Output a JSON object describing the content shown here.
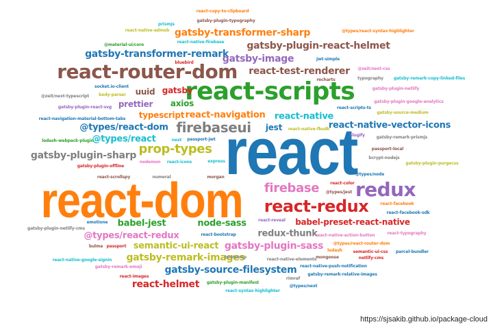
{
  "credit": "https://sjsakib.github.io/package-cloud",
  "palette": {
    "blue": "#1f77b4",
    "orange": "#ff7f0e",
    "green": "#2ca02c",
    "red": "#d62728",
    "purple": "#9467bd",
    "brown": "#8c564b",
    "pink": "#e377c2",
    "gray": "#7f7f7f",
    "olive": "#bcbd22",
    "cyan": "#17becf"
  },
  "words": [
    {
      "text": "react",
      "weight": 100,
      "color": "blue"
    },
    {
      "text": "react-dom",
      "weight": 88,
      "color": "orange"
    },
    {
      "text": "react-scripts",
      "weight": 40,
      "color": "green"
    },
    {
      "text": "react-router-dom",
      "weight": 32,
      "color": "brown"
    },
    {
      "text": "redux",
      "weight": 28,
      "color": "purple"
    },
    {
      "text": "react-redux",
      "weight": 26,
      "color": "red"
    },
    {
      "text": "firebaseui",
      "weight": 22,
      "color": "gray"
    },
    {
      "text": "firebase",
      "weight": 20,
      "color": "pink"
    },
    {
      "text": "prop-types",
      "weight": 19,
      "color": "olive"
    },
    {
      "text": "react-native-vector-icons",
      "weight": 15,
      "color": "blue"
    },
    {
      "text": "gatsby-plugin-react-helmet",
      "weight": 15,
      "color": "brown"
    },
    {
      "text": "gatsby-transformer-sharp",
      "weight": 15,
      "color": "orange"
    },
    {
      "text": "gatsby-transformer-remark",
      "weight": 14,
      "color": "blue"
    },
    {
      "text": "gatsby-image",
      "weight": 14,
      "color": "purple"
    },
    {
      "text": "react-test-renderer",
      "weight": 14,
      "color": "brown"
    },
    {
      "text": "gatsby-plugin-sharp",
      "weight": 14,
      "color": "gray"
    },
    {
      "text": "gatsby-source-filesystem",
      "weight": 14,
      "color": "blue"
    },
    {
      "text": "gatsby-remark-images",
      "weight": 14,
      "color": "olive"
    },
    {
      "text": "gatsby-plugin-sass",
      "weight": 14,
      "color": "pink"
    },
    {
      "text": "react-helmet",
      "weight": 14,
      "color": "red"
    },
    {
      "text": "babel-preset-react-native",
      "weight": 13,
      "color": "red"
    },
    {
      "text": "react-native",
      "weight": 13,
      "color": "cyan"
    },
    {
      "text": "react-navigation",
      "weight": 13,
      "color": "orange"
    },
    {
      "text": "@types/react-dom",
      "weight": 13,
      "color": "blue"
    },
    {
      "text": "@types/react",
      "weight": 13,
      "color": "cyan"
    },
    {
      "text": "@types/react-redux",
      "weight": 13,
      "color": "pink"
    },
    {
      "text": "babel-jest",
      "weight": 13,
      "color": "green"
    },
    {
      "text": "node-sass",
      "weight": 13,
      "color": "green"
    },
    {
      "text": "redux-thunk",
      "weight": 13,
      "color": "gray"
    },
    {
      "text": "semantic-ui-react",
      "weight": 13,
      "color": "olive"
    },
    {
      "text": "typescript",
      "weight": 12,
      "color": "orange"
    },
    {
      "text": "prettier",
      "weight": 12,
      "color": "purple"
    },
    {
      "text": "axios",
      "weight": 12,
      "color": "green"
    },
    {
      "text": "gatsby",
      "weight": 12,
      "color": "red"
    },
    {
      "text": "uuid",
      "weight": 12,
      "color": "brown"
    },
    {
      "text": "jest",
      "weight": 12,
      "color": "blue"
    },
    {
      "text": "react-copy-to-clipboard",
      "weight": 3,
      "color": "orange"
    },
    {
      "text": "prismjs",
      "weight": 3,
      "color": "cyan"
    },
    {
      "text": "gatsby-plugin-typography",
      "weight": 3,
      "color": "brown"
    },
    {
      "text": "react-native-admob",
      "weight": 3,
      "color": "olive"
    },
    {
      "text": "@types/react-syntax-highlighter",
      "weight": 3,
      "color": "orange"
    },
    {
      "text": "@material-ui/core",
      "weight": 3,
      "color": "green"
    },
    {
      "text": "react-native-firebase",
      "weight": 3,
      "color": "cyan"
    },
    {
      "text": "bluebird",
      "weight": 3,
      "color": "red"
    },
    {
      "text": "jwt-simple",
      "weight": 3,
      "color": "blue"
    },
    {
      "text": "@zeit/next-css",
      "weight": 3,
      "color": "pink"
    },
    {
      "text": "socket.io-client",
      "weight": 3,
      "color": "blue"
    },
    {
      "text": "body-parser",
      "weight": 3,
      "color": "olive"
    },
    {
      "text": "recharts",
      "weight": 3,
      "color": "brown"
    },
    {
      "text": "typography",
      "weight": 3,
      "color": "gray"
    },
    {
      "text": "gatsby-remark-copy-linked-files",
      "weight": 3,
      "color": "cyan"
    },
    {
      "text": "gatsby-plugin-netlify",
      "weight": 3,
      "color": "pink"
    },
    {
      "text": "@zeit/next-typescript",
      "weight": 3,
      "color": "gray"
    },
    {
      "text": "gatsby-plugin-react-svg",
      "weight": 3,
      "color": "purple"
    },
    {
      "text": "gatsby-plugin-google-analytics",
      "weight": 3,
      "color": "pink"
    },
    {
      "text": "react-scripts-ts",
      "weight": 3,
      "color": "blue"
    },
    {
      "text": "gatsby-source-medium",
      "weight": 3,
      "color": "olive"
    },
    {
      "text": "react-navigation-material-bottom-tabs",
      "weight": 3,
      "color": "blue"
    },
    {
      "text": "react-native-fbsdk",
      "weight": 3,
      "color": "olive"
    },
    {
      "text": "slugify",
      "weight": 3,
      "color": "purple"
    },
    {
      "text": "lodash-webpack-plugin",
      "weight": 3,
      "color": "green"
    },
    {
      "text": "passport-jwt",
      "weight": 3,
      "color": "blue"
    },
    {
      "text": "gatsby-remark-prismjs",
      "weight": 3,
      "color": "gray"
    },
    {
      "text": "passport-local",
      "weight": 3,
      "color": "brown"
    },
    {
      "text": "gatsby-plugin-offline",
      "weight": 3,
      "color": "red"
    },
    {
      "text": "nodemon",
      "weight": 3,
      "color": "pink"
    },
    {
      "text": "react-icons",
      "weight": 3,
      "color": "cyan"
    },
    {
      "text": "next",
      "weight": 3,
      "color": "cyan"
    },
    {
      "text": "express",
      "weight": 3,
      "color": "cyan"
    },
    {
      "text": "bcrypt-nodejs",
      "weight": 3,
      "color": "gray"
    },
    {
      "text": "gatsby-plugin-purgecss",
      "weight": 3,
      "color": "olive"
    },
    {
      "text": "@types/node",
      "weight": 3,
      "color": "blue"
    },
    {
      "text": "react-scrollspy",
      "weight": 3,
      "color": "brown"
    },
    {
      "text": "numeral",
      "weight": 3,
      "color": "gray"
    },
    {
      "text": "morgan",
      "weight": 3,
      "color": "brown"
    },
    {
      "text": "react-color",
      "weight": 3,
      "color": "red"
    },
    {
      "text": "@types/jest",
      "weight": 3,
      "color": "brown"
    },
    {
      "text": "react-facebook",
      "weight": 3,
      "color": "orange"
    },
    {
      "text": "gatsby-plugin-netlify-cms",
      "weight": 3,
      "color": "gray"
    },
    {
      "text": "emotione",
      "weight": 3,
      "color": "blue"
    },
    {
      "text": "react-reveal",
      "weight": 3,
      "color": "purple"
    },
    {
      "text": "react-facebook-sdk",
      "weight": 3,
      "color": "blue"
    },
    {
      "text": "react-typography",
      "weight": 3,
      "color": "pink"
    },
    {
      "text": "react-bootstrap",
      "weight": 3,
      "color": "blue"
    },
    {
      "text": "react-native-action-button",
      "weight": 3,
      "color": "pink"
    },
    {
      "text": "@types/react-router-dom",
      "weight": 3,
      "color": "orange"
    },
    {
      "text": "bulma",
      "weight": 3,
      "color": "brown"
    },
    {
      "text": "passport",
      "weight": 3,
      "color": "red"
    },
    {
      "text": "lodash",
      "weight": 3,
      "color": "orange"
    },
    {
      "text": "mongoose",
      "weight": 3,
      "color": "brown"
    },
    {
      "text": "semantic-ui-css",
      "weight": 3,
      "color": "red"
    },
    {
      "text": "parcel-bundler",
      "weight": 3,
      "color": "blue"
    },
    {
      "text": "react-native-google-signin",
      "weight": 3,
      "color": "cyan"
    },
    {
      "text": "bootstrap",
      "weight": 3,
      "color": "gray"
    },
    {
      "text": "react-native-elements",
      "weight": 3,
      "color": "gray"
    },
    {
      "text": "netlify-cms",
      "weight": 3,
      "color": "red"
    },
    {
      "text": "gatsby-remark-emoji",
      "weight": 3,
      "color": "pink"
    },
    {
      "text": "react-native-push-notification",
      "weight": 3,
      "color": "blue"
    },
    {
      "text": "react-images",
      "weight": 3,
      "color": "red"
    },
    {
      "text": "rimraf",
      "weight": 3,
      "color": "gray"
    },
    {
      "text": "gatsby-remark-relative-images",
      "weight": 3,
      "color": "blue"
    },
    {
      "text": "gatsby-plugin-manifest",
      "weight": 3,
      "color": "green"
    },
    {
      "text": "react-syntax-highlighter",
      "weight": 3,
      "color": "cyan"
    },
    {
      "text": "@types/next",
      "weight": 3,
      "color": "blue"
    }
  ]
}
